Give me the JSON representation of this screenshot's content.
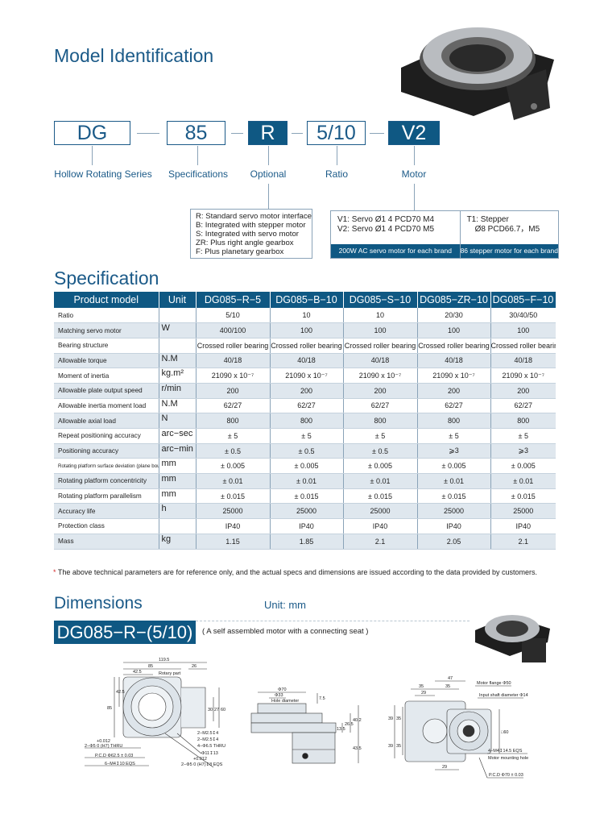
{
  "model_identification": {
    "title": "Model Identification",
    "codes": [
      {
        "code": "DG",
        "label": "Hollow Rotating Series",
        "filled": false
      },
      {
        "code": "85",
        "label": "Specifications",
        "filled": false
      },
      {
        "code": "R",
        "label": "Optional",
        "filled": true
      },
      {
        "code": "5/10",
        "label": "Ratio",
        "filled": false
      },
      {
        "code": "V2",
        "label": "Motor",
        "filled": true
      }
    ],
    "optional_list": [
      "R: Standard servo motor interface",
      "B: Integrated with stepper motor",
      "S: Integrated with servo motor",
      "ZR: Plus right angle gearbox",
      "F: Plus planetary gearbox"
    ],
    "motor_servo": {
      "lines": [
        "V1: Servo Ø1 4  PCD70 M4",
        "V2: Servo Ø1 4  PCD70 M5"
      ],
      "footer": "200W AC servo motor for each brand"
    },
    "motor_stepper": {
      "lines": [
        "T1: Stepper",
        "Ø8 PCD66.7，M5"
      ],
      "footer": "86 stepper motor for each brand"
    }
  },
  "specification": {
    "title": "Specification",
    "headers": [
      "Product model",
      "Unit",
      "DG085−R−5",
      "DG085−B−10",
      "DG085−S−10",
      "DG085−ZR−10",
      "DG085−F−10"
    ],
    "rows": [
      [
        "Ratio",
        "",
        "5/10",
        "10",
        "10",
        "20/30",
        "30/40/50"
      ],
      [
        "Matching servo motor",
        "W",
        "400/100",
        "100",
        "100",
        "100",
        "100"
      ],
      [
        "Bearing structure",
        "",
        "Crossed roller bearing",
        "Crossed roller bearing",
        "Crossed roller bearing",
        "Crossed roller bearing",
        "Crossed roller bearing"
      ],
      [
        "Allowable torque",
        "N.M",
        "40/18",
        "40/18",
        "40/18",
        "40/18",
        "40/18"
      ],
      [
        "Moment of inertia",
        "kg.m²",
        "21090 x 10⁻⁷",
        "21090 x 10⁻⁷",
        "21090 x 10⁻⁷",
        "21090 x 10⁻⁷",
        "21090 x 10⁻⁷"
      ],
      [
        "Allowable plate output speed",
        "r/min",
        "200",
        "200",
        "200",
        "200",
        "200"
      ],
      [
        "Allowable inertia moment load",
        "N.M",
        "62/27",
        "62/27",
        "62/27",
        "62/27",
        "62/27"
      ],
      [
        "Allowable axial load",
        "N",
        "800",
        "800",
        "800",
        "800",
        "800"
      ],
      [
        "Repeat positioning accuracy",
        "arc−sec",
        "± 5",
        "± 5",
        "± 5",
        "± 5",
        "± 5"
      ],
      [
        "Positioning accuracy",
        "arc−min",
        "± 0.5",
        "± 0.5",
        "± 0.5",
        "⩾3",
        "⩾3"
      ],
      [
        "Rotating platform surface deviation (plane bounce)",
        "mm",
        "± 0.005",
        "± 0.005",
        "± 0.005",
        "± 0.005",
        "± 0.005"
      ],
      [
        "Rotating platform concentricity",
        "mm",
        "± 0.01",
        "± 0.01",
        "± 0.01",
        "± 0.01",
        "± 0.01"
      ],
      [
        "Rotating platform parallelism",
        "mm",
        "± 0.015",
        "± 0.015",
        "± 0.015",
        "± 0.015",
        "± 0.015"
      ],
      [
        "Accuracy life",
        "h",
        "25000",
        "25000",
        "25000",
        "25000",
        "25000"
      ],
      [
        "Protection class",
        "",
        "IP40",
        "IP40",
        "IP40",
        "IP40",
        "IP40"
      ],
      [
        "Mass",
        "kg",
        "1.15",
        "1.85",
        "2.1",
        "2.05",
        "2.1"
      ]
    ],
    "note_star": "*",
    "note": "The above technical parameters are for reference only, and the actual specs and dimensions are issued according to the data provided by customers."
  },
  "dimensions": {
    "title": "Dimensions",
    "unit": "Unit: mm",
    "model": "DG085−R−(5/10)",
    "model_note": "( A self assembled motor with a connecting seat )",
    "top_view": {
      "d1": "119.5",
      "d2": "85",
      "d3": "26",
      "d4": "42.5",
      "d5": "Rotary part",
      "d6": "42.5",
      "d7": "85",
      "d8": "30",
      "d9": "27",
      "d10": "60",
      "n1": "2−M2.5↧4",
      "n2": "2−M2.5↧4",
      "n3": "4−Φ6.5 THRU",
      "n4": "Φ11↧13",
      "n5": "+0.012",
      "n6": "2−Φ5  0   (H7)↧8 EQS",
      "n7": "+0.012",
      "n8": "2−Φ5  0   (H7) THRU",
      "n9": "P.C.D Φ62.5 ± 0.03",
      "n10": "6−M4↧10 EQS"
    },
    "side_view": {
      "d1": "Φ70",
      "d2": "Φ33",
      "d3": "Hole diameter",
      "d4": "7.5",
      "d5": "13.5",
      "d6": "26.5",
      "d7": "40.2",
      "d8": "43.5"
    },
    "bottom_view": {
      "d1": "47",
      "d2": "35",
      "d3": "35",
      "d4": "29",
      "d5": "39",
      "d6": "35",
      "d7": "39",
      "d8": "35",
      "d9": "29",
      "d10": "□60",
      "n1": "Motor flange Φ50",
      "n2": "Input shaft diameter Φ14",
      "n3": "4−M4↧14.5 EQS",
      "n4": "Motor mounting hole",
      "n5": "P.C.D  Φ70 ± 0.03"
    }
  },
  "colors": {
    "brand_blue": "#0f5883",
    "title_blue": "#1b5a88",
    "row_alt": "#dfe7ee",
    "note_star": "#d32a2a"
  }
}
